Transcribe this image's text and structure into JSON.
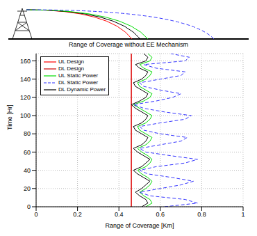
{
  "chart_data": {
    "type": "line",
    "title": "Range of Coverage without EE Mechanism",
    "x_label": "Range of Coverage [Km]",
    "y_label": "Time [Hr]",
    "xlim": [
      0,
      1
    ],
    "xticks": [
      0,
      0.2,
      0.4,
      0.6,
      0.8,
      1
    ],
    "ylim": [
      0,
      168
    ],
    "yticks": [
      0,
      20,
      40,
      60,
      80,
      100,
      120,
      140,
      160
    ],
    "grid": true,
    "legend": "upper left",
    "series": [
      {
        "name": "UL Design",
        "color": "#ff0000",
        "line_style": "solid",
        "x": [
          0.46,
          0.46
        ],
        "y": [
          0,
          168
        ]
      },
      {
        "name": "DL Design",
        "color": "#cc0000",
        "line_style": "solid",
        "x": [
          0.46,
          0.46
        ],
        "y": [
          0,
          168
        ]
      },
      {
        "name": "UL Static Power",
        "color": "#00dd00",
        "line_style": "solid",
        "x": [
          0.53,
          0.56,
          0.55,
          0.52,
          0.5,
          0.53,
          0.55,
          0.56,
          0.54,
          0.51,
          0.49,
          0.53,
          0.55,
          0.56,
          0.54,
          0.51,
          0.49,
          0.53,
          0.55,
          0.56,
          0.53,
          0.5,
          0.49,
          0.53,
          0.55,
          0.56,
          0.53,
          0.5,
          0.47,
          0.52,
          0.55,
          0.56,
          0.53,
          0.5,
          0.49,
          0.53,
          0.55,
          0.56,
          0.52,
          0.5,
          0.55,
          0.56,
          0.54
        ],
        "y": [
          0,
          4,
          8,
          12,
          16,
          20,
          24,
          28,
          32,
          36,
          40,
          44,
          48,
          52,
          56,
          60,
          64,
          68,
          72,
          76,
          80,
          84,
          88,
          92,
          96,
          100,
          104,
          108,
          112,
          116,
          120,
          124,
          128,
          132,
          136,
          140,
          144,
          148,
          152,
          156,
          160,
          164,
          168
        ]
      },
      {
        "name": "DL Static Power",
        "color": "#3333ff",
        "line_style": "dashed",
        "x": [
          0.62,
          0.78,
          0.72,
          0.55,
          0.5,
          0.6,
          0.7,
          0.76,
          0.66,
          0.54,
          0.5,
          0.58,
          0.72,
          0.78,
          0.65,
          0.53,
          0.5,
          0.6,
          0.7,
          0.73,
          0.6,
          0.52,
          0.5,
          0.6,
          0.72,
          0.75,
          0.62,
          0.52,
          0.47,
          0.58,
          0.66,
          0.7,
          0.6,
          0.52,
          0.5,
          0.6,
          0.7,
          0.72,
          0.58,
          0.52,
          0.72,
          0.74,
          0.65
        ],
        "y": [
          0,
          4,
          8,
          12,
          16,
          20,
          24,
          28,
          32,
          36,
          40,
          44,
          48,
          52,
          56,
          60,
          64,
          68,
          72,
          76,
          80,
          84,
          88,
          92,
          96,
          100,
          104,
          108,
          112,
          116,
          120,
          124,
          128,
          132,
          136,
          140,
          144,
          148,
          152,
          156,
          160,
          164,
          168
        ]
      },
      {
        "name": "DL Dynamic Power",
        "color": "#000000",
        "line_style": "solid",
        "x": [
          0.51,
          0.54,
          0.53,
          0.5,
          0.48,
          0.51,
          0.53,
          0.55,
          0.52,
          0.49,
          0.47,
          0.51,
          0.53,
          0.55,
          0.52,
          0.49,
          0.47,
          0.51,
          0.53,
          0.54,
          0.51,
          0.48,
          0.47,
          0.51,
          0.53,
          0.54,
          0.51,
          0.48,
          0.46,
          0.5,
          0.53,
          0.54,
          0.51,
          0.48,
          0.47,
          0.51,
          0.53,
          0.54,
          0.5,
          0.48,
          0.53,
          0.54,
          0.52
        ],
        "y": [
          0,
          4,
          8,
          12,
          16,
          20,
          24,
          28,
          32,
          36,
          40,
          44,
          48,
          52,
          56,
          60,
          64,
          68,
          72,
          76,
          80,
          84,
          88,
          92,
          96,
          100,
          104,
          108,
          112,
          116,
          120,
          124,
          128,
          132,
          136,
          140,
          144,
          148,
          152,
          156,
          160,
          164,
          168
        ]
      }
    ]
  }
}
